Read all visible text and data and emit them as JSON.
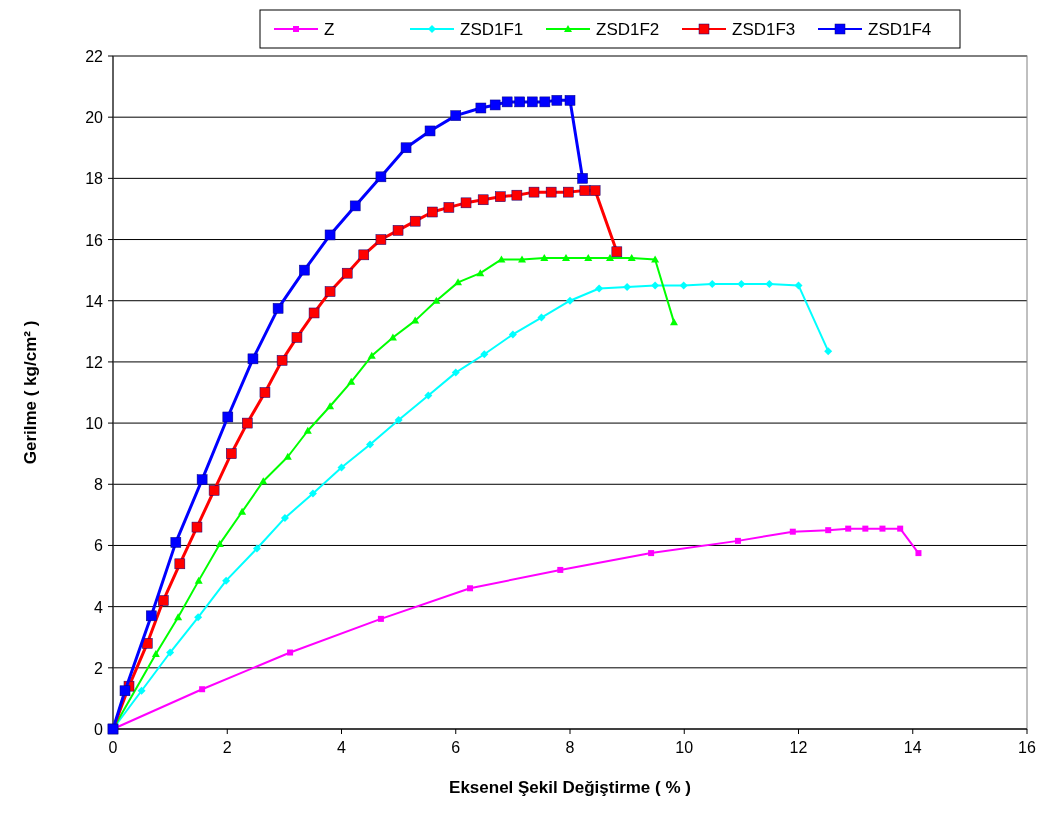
{
  "chart_data": {
    "type": "line",
    "xlabel": "Eksenel Şekil Değiştirme ( % )",
    "ylabel": "Gerilme ( kg/cm² )",
    "xlim": [
      0,
      16
    ],
    "xticks": [
      0,
      2,
      4,
      6,
      8,
      10,
      12,
      14,
      16
    ],
    "ylim": [
      0,
      22
    ],
    "yticks": [
      0,
      2,
      4,
      6,
      8,
      10,
      12,
      14,
      16,
      18,
      20,
      22
    ],
    "grid": "y",
    "legend": "top",
    "line_style": "solid",
    "series": [
      {
        "name": "Z",
        "color": "#ff00ff",
        "marker": "square",
        "x": [
          0,
          1.56,
          3.1,
          4.69,
          6.25,
          7.83,
          9.42,
          10.94,
          11.9,
          12.52,
          12.87,
          13.17,
          13.47,
          13.78,
          14.1
        ],
        "values": [
          0,
          1.3,
          2.5,
          3.6,
          4.6,
          5.2,
          5.75,
          6.15,
          6.45,
          6.5,
          6.55,
          6.55,
          6.55,
          6.55,
          5.75
        ]
      },
      {
        "name": "ZSD1F1",
        "color": "#00ffff",
        "marker": "diamond",
        "x": [
          0,
          0.5,
          1.0,
          1.49,
          1.98,
          2.52,
          3.01,
          3.5,
          4.0,
          4.5,
          5.0,
          5.52,
          6.0,
          6.5,
          7.0,
          7.5,
          8.0,
          8.51,
          9.0,
          9.49,
          9.99,
          10.49,
          11.0,
          11.49,
          12.0,
          12.52
        ],
        "values": [
          0,
          1.25,
          2.5,
          3.65,
          4.85,
          5.9,
          6.9,
          7.7,
          8.55,
          9.3,
          10.1,
          10.9,
          11.65,
          12.25,
          12.9,
          13.45,
          14.0,
          14.4,
          14.45,
          14.5,
          14.5,
          14.55,
          14.55,
          14.55,
          14.5,
          12.35
        ]
      },
      {
        "name": "ZSD1F2",
        "color": "#00ff00",
        "marker": "triangle",
        "x": [
          0,
          0.25,
          0.75,
          1.14,
          1.5,
          1.87,
          2.26,
          2.63,
          3.06,
          3.41,
          3.8,
          4.17,
          4.53,
          4.9,
          5.29,
          5.66,
          6.04,
          6.43,
          6.8,
          7.16,
          7.55,
          7.93,
          8.32,
          8.7,
          9.08,
          9.49,
          9.82
        ],
        "values": [
          0,
          null,
          2.45,
          3.65,
          4.85,
          6.05,
          7.1,
          8.1,
          8.9,
          9.75,
          10.55,
          11.35,
          12.2,
          12.8,
          13.35,
          14.0,
          14.6,
          14.9,
          15.35,
          15.35,
          15.4,
          15.4,
          15.4,
          15.4,
          15.4,
          15.35,
          13.3
        ]
      },
      {
        "name": "ZSD1F3",
        "color": "#ff0000",
        "marker": "square",
        "x": [
          0,
          0.28,
          0.6,
          0.88,
          1.17,
          1.47,
          1.77,
          2.07,
          2.35,
          2.66,
          2.96,
          3.22,
          3.52,
          3.8,
          4.1,
          4.39,
          4.69,
          4.99,
          5.29,
          5.59,
          5.88,
          6.18,
          6.48,
          6.78,
          7.07,
          7.37,
          7.67,
          7.97,
          8.26,
          8.44,
          8.82
        ],
        "values": [
          0,
          1.4,
          2.8,
          4.2,
          5.4,
          6.6,
          7.8,
          9.0,
          10.0,
          11.0,
          12.05,
          12.8,
          13.6,
          14.3,
          14.9,
          15.5,
          16.0,
          16.3,
          16.6,
          16.9,
          17.05,
          17.2,
          17.3,
          17.4,
          17.45,
          17.55,
          17.55,
          17.55,
          17.6,
          17.6,
          15.6
        ]
      },
      {
        "name": "ZSD1F4",
        "color": "#0000ff",
        "marker": "square",
        "x": [
          0,
          0.21,
          0.67,
          1.1,
          1.56,
          2.01,
          2.45,
          2.89,
          3.35,
          3.8,
          4.24,
          4.69,
          5.13,
          5.55,
          6.0,
          6.44,
          6.69,
          6.9,
          7.12,
          7.34,
          7.56,
          7.77,
          8.0,
          8.22
        ],
        "values": [
          0,
          1.25,
          3.7,
          6.1,
          8.15,
          10.2,
          12.1,
          13.75,
          15.0,
          16.15,
          17.1,
          18.05,
          19.0,
          19.55,
          20.05,
          20.3,
          20.4,
          20.5,
          20.5,
          20.5,
          20.5,
          20.55,
          20.55,
          18.0
        ]
      }
    ]
  }
}
